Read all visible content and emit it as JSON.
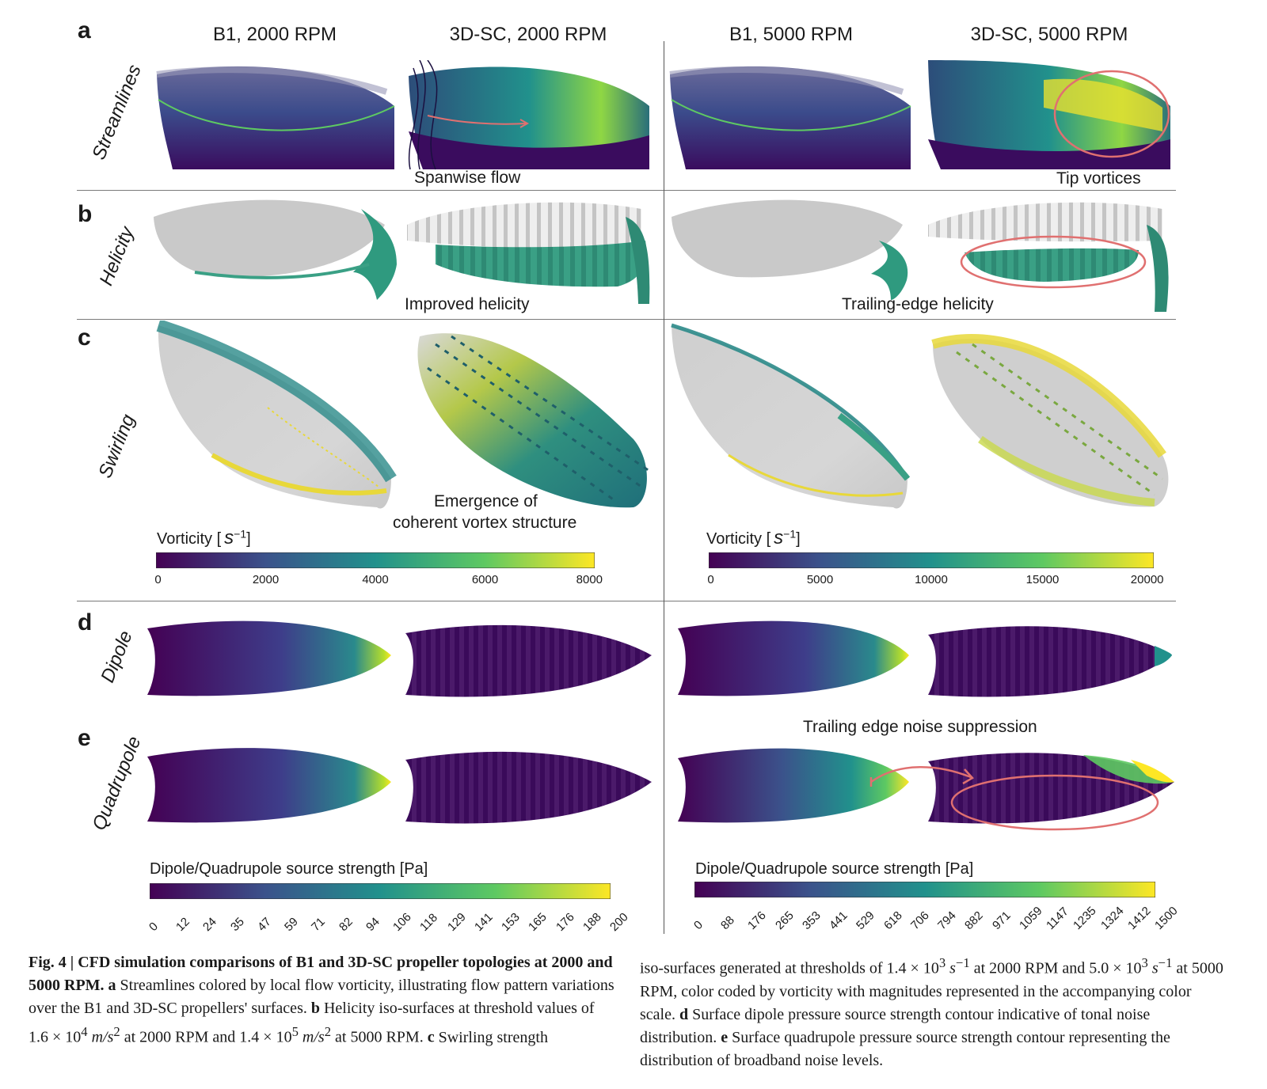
{
  "panels": {
    "a": "a",
    "b": "b",
    "c": "c",
    "d": "d",
    "e": "e"
  },
  "columns": [
    "B1, 2000 RPM",
    "3D-SC, 2000 RPM",
    "B1, 5000 RPM",
    "3D-SC, 5000 RPM"
  ],
  "row_labels": {
    "a": "Streamlines",
    "b": "Helicity",
    "c": "Swirling",
    "d": "Dipole",
    "e": "Quadrupole"
  },
  "annotations": {
    "spanwise": "Spanwise flow",
    "tip": "Tip vortices",
    "improved": "Improved helicity",
    "trailing_helicity": "Trailing-edge helicity",
    "emergence_1": "Emergence of",
    "emergence_2": "coherent vortex structure",
    "noise_suppression": "Trailing edge noise suppression"
  },
  "colorbars": {
    "vort_left": {
      "title": "Vorticity [",
      "unit": "s",
      "exp": "−1",
      "close": "]",
      "ticks": [
        "0",
        "2000",
        "4000",
        "6000",
        "8000"
      ]
    },
    "vort_right": {
      "title": "Vorticity [",
      "unit": "s",
      "exp": "−1",
      "close": "]",
      "ticks": [
        "0",
        "5000",
        "10000",
        "15000",
        "20000"
      ]
    },
    "src_left": {
      "title": "Dipole/Quadrupole source strength [Pa]",
      "ticks": [
        "0",
        "12",
        "24",
        "35",
        "47",
        "59",
        "71",
        "82",
        "94",
        "106",
        "118",
        "129",
        "141",
        "153",
        "165",
        "176",
        "188",
        "200"
      ]
    },
    "src_right": {
      "title": "Dipole/Quadrupole source strength [Pa]",
      "ticks": [
        "0",
        "88",
        "176",
        "265",
        "353",
        "441",
        "529",
        "618",
        "706",
        "794",
        "882",
        "971",
        "1059",
        "1147",
        "1235",
        "1324",
        "1412",
        "1500"
      ]
    }
  },
  "colors": {
    "viridis_0": "#440154",
    "viridis_1": "#3b528b",
    "viridis_2": "#21918c",
    "viridis_3": "#5ec962",
    "viridis_4": "#fde725",
    "highlight": "#e07070"
  },
  "caption": {
    "fig": "Fig. 4",
    "sep": " | ",
    "title": "CFD simulation comparisons of B1 and 3D-SC propeller topologies at 2000 and 5000 RPM.",
    "a_label": " a",
    "a_text": " Streamlines colored by local flow vorticity, illustrating flow pattern variations over the B1 and 3D-SC propellers' surfaces.",
    "b_label": " b",
    "b_text_1": " Helicity iso-surfaces at threshold values of 1.6 × 10",
    "b_exp_1": "4",
    "b_text_2": " m/s",
    "b_exp_2": "2",
    "b_text_3": " at 2000 RPM and 1.4 × 10",
    "b_exp_3": "5",
    "b_text_4": " m/s",
    "b_exp_4": "2",
    "b_text_5": " at 5000 RPM.",
    "c_label": " c",
    "c_text_1": " Swirling strength iso-surfaces generated at thresholds of 1.4 × 10",
    "c_exp_1": "3",
    "c_text_2": " s",
    "c_exp_2": "−1",
    "c_text_3": " at 2000 RPM and 5.0 × 10",
    "c_exp_3": "3",
    "c_text_4": " s",
    "c_exp_4": "−1",
    "c_text_5": " at 5000 RPM, color coded by vorticity with magnitudes represented in the accompanying color scale.",
    "d_label": " d",
    "d_text": " Surface dipole pressure source strength contour indicative of tonal noise distribution.",
    "e_label": " e",
    "e_text": " Surface quadrupole pressure source strength contour representing the distribution of broadband noise levels."
  }
}
